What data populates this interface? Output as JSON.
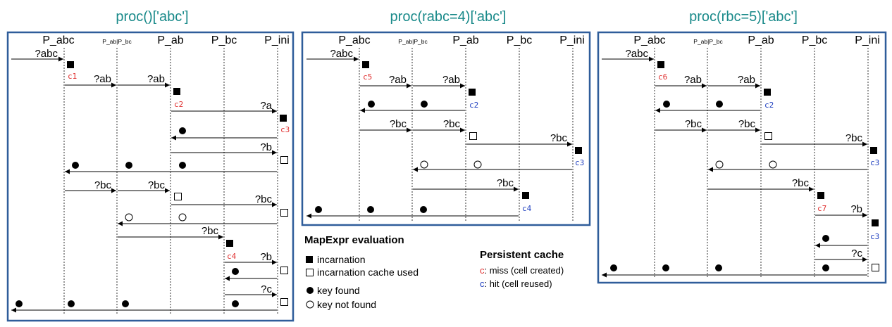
{
  "panels": [
    {
      "title": "proc()['abc']",
      "lanes": [
        "P_abc",
        "P_ab|P_bc",
        "P_ab",
        "P_bc",
        "P_ini"
      ],
      "messages": [
        {
          "label": "?abc"
        },
        {
          "label": "?ab"
        },
        {
          "label": "?ab"
        },
        {
          "label": "?a"
        },
        {
          "label": "?b"
        },
        {
          "label": "?bc"
        },
        {
          "label": "?bc"
        },
        {
          "label": "?bc"
        },
        {
          "label": "?bc"
        },
        {
          "label": "?b"
        },
        {
          "label": "?c"
        }
      ],
      "cells": [
        {
          "text": "c1",
          "status": "miss"
        },
        {
          "text": "c2",
          "status": "miss"
        },
        {
          "text": "c3",
          "status": "miss"
        },
        {
          "text": "c4",
          "status": "miss"
        }
      ]
    },
    {
      "title": "proc(rabc=4)['abc']",
      "lanes": [
        "P_abc",
        "P_ab|P_bc",
        "P_ab",
        "P_bc",
        "P_ini"
      ],
      "messages": [
        {
          "label": "?abc"
        },
        {
          "label": "?ab"
        },
        {
          "label": "?ab"
        },
        {
          "label": "?bc"
        },
        {
          "label": "?bc"
        },
        {
          "label": "?bc"
        },
        {
          "label": "?bc"
        }
      ],
      "cells": [
        {
          "text": "c5",
          "status": "miss"
        },
        {
          "text": "c2",
          "status": "hit"
        },
        {
          "text": "c3",
          "status": "hit"
        },
        {
          "text": "c4",
          "status": "hit"
        }
      ]
    },
    {
      "title": "proc(rbc=5)['abc']",
      "lanes": [
        "P_abc",
        "P_ab|P_bc",
        "P_ab",
        "P_bc",
        "P_ini"
      ],
      "messages": [
        {
          "label": "?abc"
        },
        {
          "label": "?ab"
        },
        {
          "label": "?ab"
        },
        {
          "label": "?bc"
        },
        {
          "label": "?bc"
        },
        {
          "label": "?bc"
        },
        {
          "label": "?bc"
        },
        {
          "label": "?b"
        },
        {
          "label": "?c"
        }
      ],
      "cells": [
        {
          "text": "c6",
          "status": "miss"
        },
        {
          "text": "c2",
          "status": "hit"
        },
        {
          "text": "c3",
          "status": "hit"
        },
        {
          "text": "c7",
          "status": "miss"
        },
        {
          "text": "c3",
          "status": "hit"
        }
      ]
    }
  ],
  "legend_mapexpr": {
    "title": "MapExpr evaluation",
    "items": [
      "incarnation",
      "incarnation cache used",
      "key found",
      "key not found"
    ]
  },
  "legend_cache": {
    "title": "Persistent cache",
    "miss_code": "c",
    "miss_text": ": miss (cell created)",
    "hit_code": "c",
    "hit_text": ": hit (cell reused)"
  },
  "colors": {
    "frame": "#2f5d9a",
    "title": "#1a8a8a",
    "miss": "#e03030",
    "hit": "#2040c0"
  }
}
